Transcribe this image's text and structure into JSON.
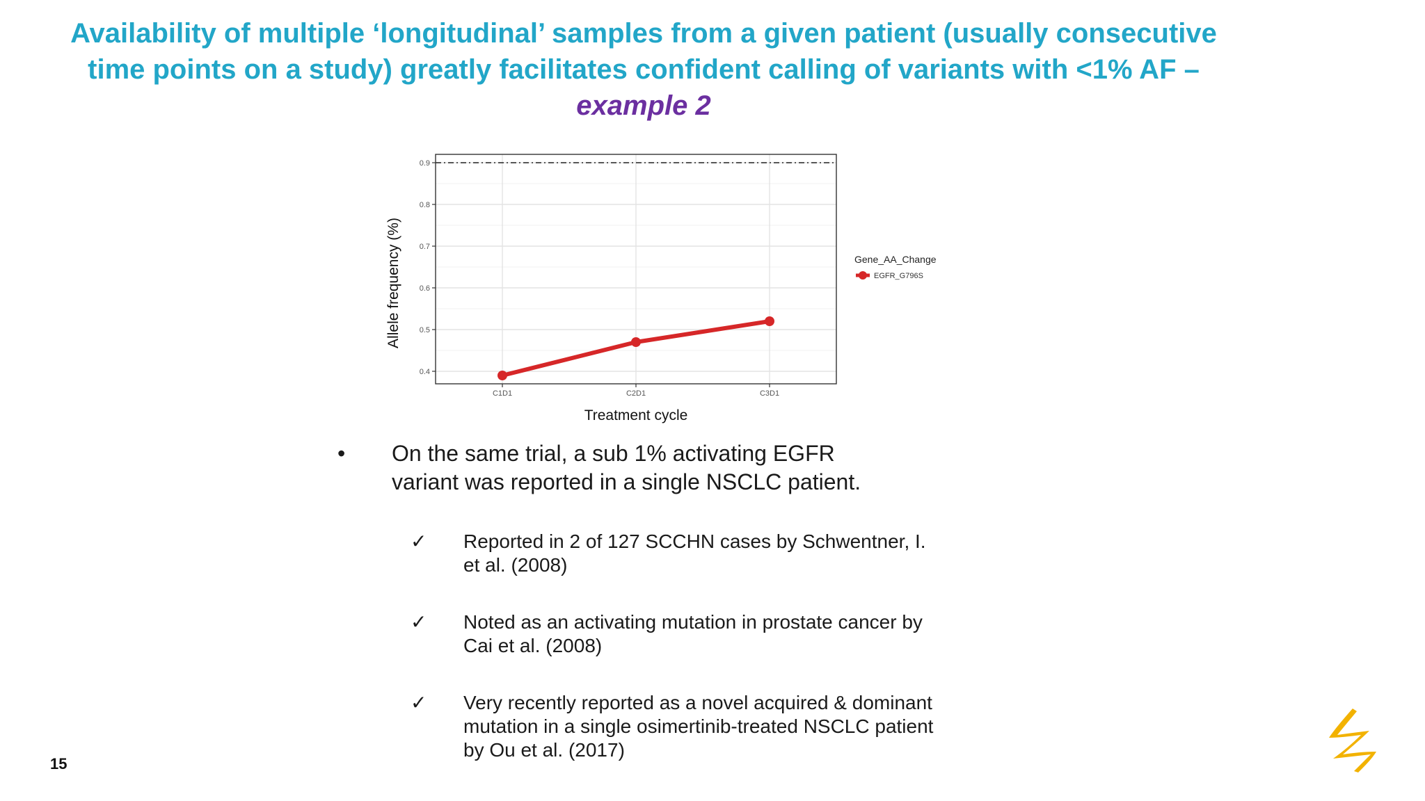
{
  "slide": {
    "title_line1": "Availability of multiple ‘longitudinal’ samples from a given patient (usually consecutive",
    "title_line2": "time points on a study) greatly facilitates confident calling of variants with <1% AF –",
    "title_line3": "example 2",
    "page_number": "15"
  },
  "bullets": {
    "main_marker": "•",
    "main_text": "On the same trial, a sub 1% activating EGFR variant was reported in a single NSCLC patient.",
    "check_marker": "✓",
    "checks": [
      "Reported in 2 of 127 SCCHN cases by Schwentner, I. et al. (2008)",
      "Noted as an activating mutation in prostate cancer by Cai et al. (2008)",
      "Very recently reported as a novel acquired & dominant mutation in a single osimertinib-treated NSCLC patient by Ou et al. (2017)"
    ]
  },
  "colors": {
    "title": "#22a6c8",
    "title_emphasis": "#6b2fa0",
    "series": "#d62728",
    "logo": "#f2b200"
  },
  "icons": {
    "logo": "company-logo-icon"
  },
  "chart_data": {
    "type": "line",
    "xlabel": "Treatment cycle",
    "ylabel": "Allele frequency (%)",
    "categories": [
      "C1D1",
      "C2D1",
      "C3D1"
    ],
    "ylim": [
      0.37,
      0.92
    ],
    "yticks": [
      0.4,
      0.5,
      0.6,
      0.7,
      0.8,
      0.9
    ],
    "ytick_labels": [
      "0.4",
      "0.5",
      "0.6",
      "0.7",
      "0.8",
      "0.9"
    ],
    "reference_line": 0.9,
    "grid": true,
    "legend_title": "Gene_AA_Change",
    "legend_position": "right",
    "series": [
      {
        "name": "EGFR_G796S",
        "values": [
          0.39,
          0.47,
          0.52
        ]
      }
    ]
  }
}
